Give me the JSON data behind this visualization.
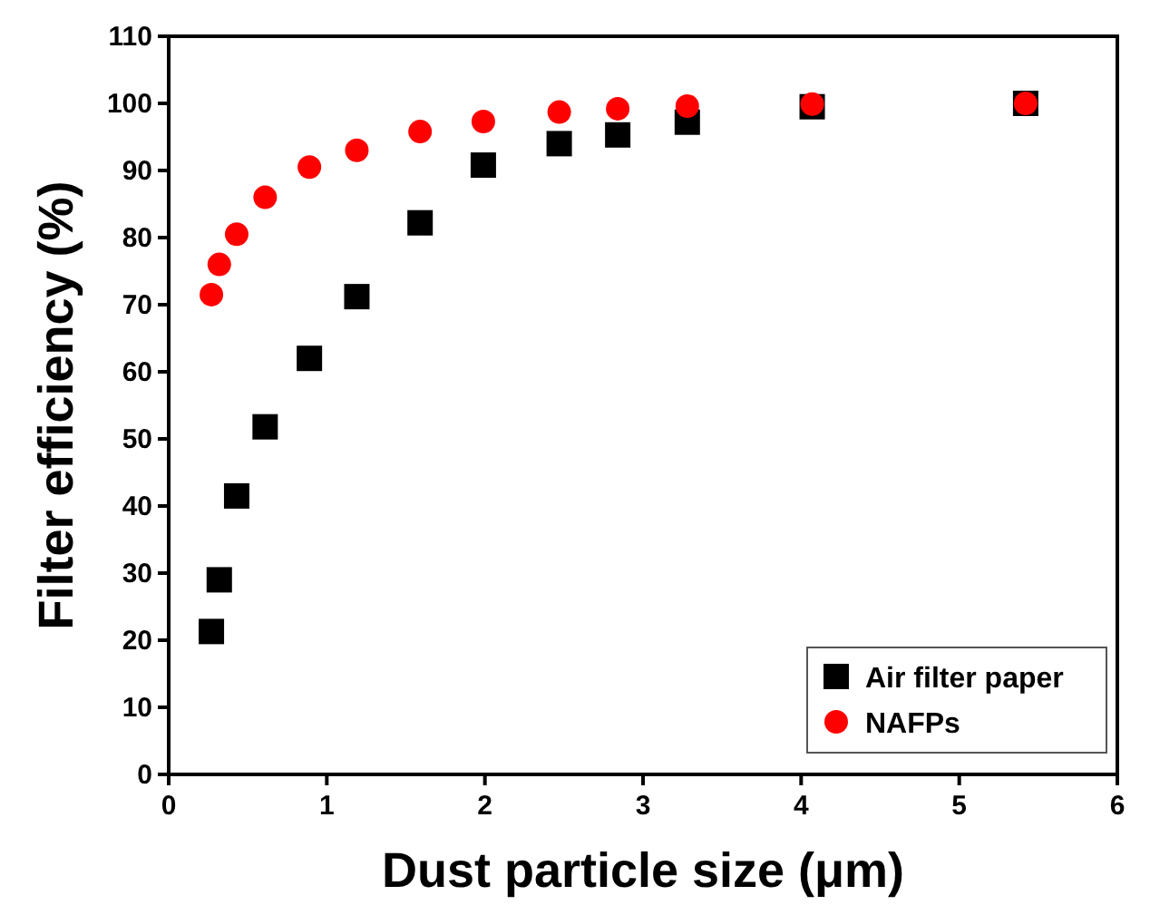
{
  "chart_data": {
    "type": "scatter",
    "xlabel": "Dust particle size (μm)",
    "ylabel": "Filter efficiency (%)",
    "xlim": [
      0,
      6
    ],
    "xticks": [
      0,
      1,
      2,
      3,
      4,
      5,
      6
    ],
    "ylim": [
      0,
      110
    ],
    "yticks": [
      0,
      10,
      20,
      30,
      40,
      50,
      60,
      70,
      80,
      90,
      100,
      110
    ],
    "x": [
      0.27,
      0.32,
      0.43,
      0.61,
      0.89,
      1.19,
      1.59,
      1.99,
      2.47,
      2.84,
      3.28,
      4.07,
      5.42
    ],
    "legend": "bottom right",
    "grid": false,
    "series": [
      {
        "name": "Air filter paper",
        "color": "#000000",
        "marker": "square",
        "values": [
          21.3,
          29,
          41.5,
          51.8,
          62,
          71.2,
          82.2,
          90.8,
          94,
          95.3,
          97.2,
          99.5,
          100
        ]
      },
      {
        "name": "NAFPs",
        "color": "#ff0000",
        "marker": "circle",
        "values": [
          71.5,
          76,
          80.5,
          86,
          90.5,
          93,
          95.8,
          97.3,
          98.7,
          99.2,
          99.6,
          99.9,
          100
        ]
      }
    ]
  }
}
